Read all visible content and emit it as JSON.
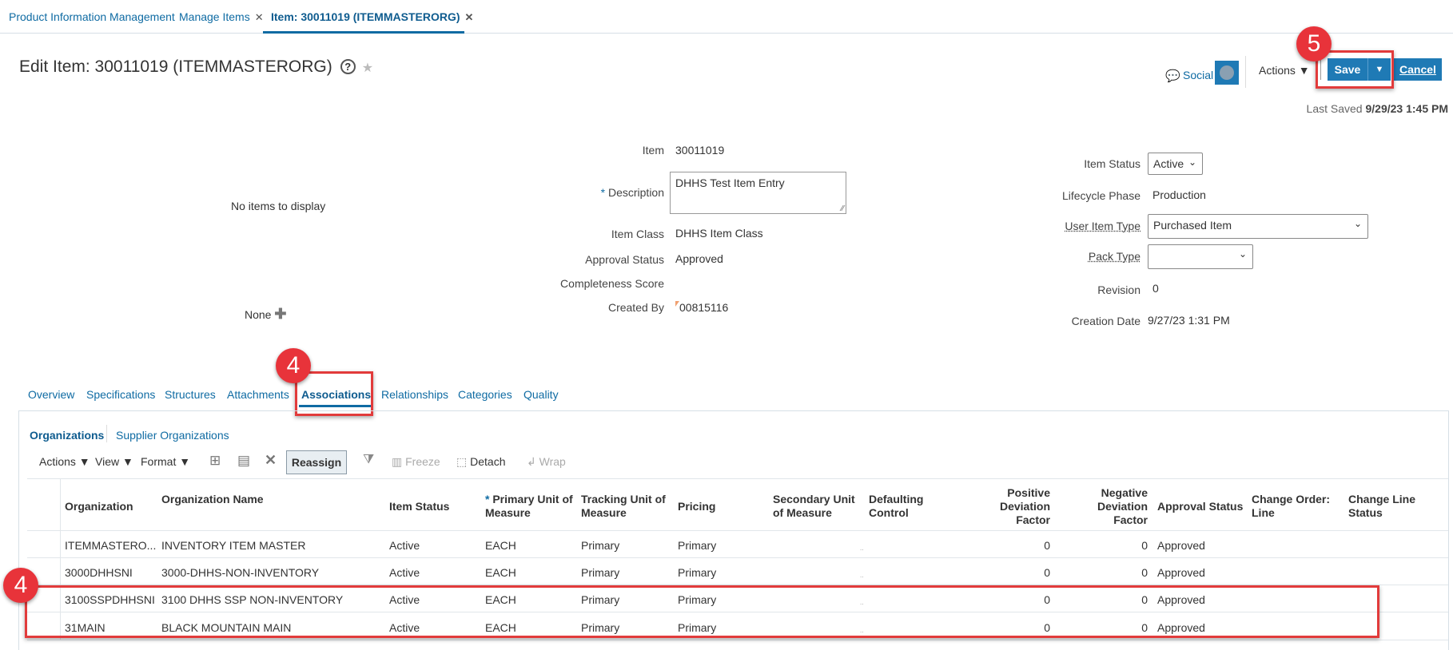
{
  "top_tabs": [
    {
      "label": "Product Information Management",
      "closable": false
    },
    {
      "label": "Manage Items",
      "closable": true
    },
    {
      "label": "Item: 30011019 (ITEMMASTERORG)",
      "closable": true,
      "active": true
    }
  ],
  "header": {
    "title": "Edit Item: 30011019 (ITEMMASTERORG)",
    "social": "Social",
    "actions": "Actions",
    "save": "Save",
    "cancel": "Cancel",
    "last_saved_label": "Last Saved",
    "last_saved_value": "9/29/23 1:45 PM"
  },
  "left": {
    "no_items": "No items to display",
    "none": "None"
  },
  "form_left": [
    {
      "label": "Item",
      "value": "30011019"
    },
    {
      "label": "Description",
      "value": "DHHS Test Item Entry",
      "required": true
    },
    {
      "label": "Item Class",
      "value": "DHHS Item Class"
    },
    {
      "label": "Approval Status",
      "value": "Approved"
    },
    {
      "label": "Completeness Score",
      "value": ""
    },
    {
      "label": "Created By",
      "value": "00815116"
    }
  ],
  "form_right": [
    {
      "label": "Item Status",
      "value": "Active"
    },
    {
      "label": "Lifecycle Phase",
      "value": "Production"
    },
    {
      "label": "User Item Type",
      "value": "Purchased Item"
    },
    {
      "label": "Pack Type",
      "value": ""
    },
    {
      "label": "Revision",
      "value": "0"
    },
    {
      "label": "Creation Date",
      "value": "9/27/23 1:31 PM"
    }
  ],
  "page_tabs": [
    "Overview",
    "Specifications",
    "Structures",
    "Attachments",
    "Associations",
    "Relationships",
    "Categories",
    "Quality"
  ],
  "active_page_tab": "Associations",
  "sub_tabs": [
    "Organizations",
    "Supplier Organizations"
  ],
  "toolbar": {
    "actions": "Actions",
    "view": "View",
    "format": "Format",
    "reassign": "Reassign",
    "freeze": "Freeze",
    "detach": "Detach",
    "wrap": "Wrap"
  },
  "annotations": {
    "save_step": "5",
    "tab_step": "4",
    "rows_step": "4",
    "highlight_color": "#e23b3b"
  },
  "table": {
    "columns": [
      "Organization",
      "Organization Name",
      "Item Status",
      "Primary Unit of Measure",
      "Tracking Unit of Measure",
      "Pricing",
      "Secondary Unit of Measure",
      "Defaulting Control",
      "Positive Deviation Factor",
      "Negative Deviation Factor",
      "Approval Status",
      "Change Order: Line",
      "Change Line Status"
    ],
    "rows": [
      [
        "ITEMMASTERO...",
        "INVENTORY ITEM MASTER",
        "Active",
        "EACH",
        "Primary",
        "Primary",
        "",
        "..",
        "0",
        "0",
        "Approved",
        "",
        ""
      ],
      [
        "3000DHHSNI",
        "3000-DHHS-NON-INVENTORY",
        "Active",
        "EACH",
        "Primary",
        "Primary",
        "",
        "..",
        "0",
        "0",
        "Approved",
        "",
        ""
      ],
      [
        "3100SSPDHHSNI",
        "3100 DHHS SSP NON-INVENTORY",
        "Active",
        "EACH",
        "Primary",
        "Primary",
        "",
        "..",
        "0",
        "0",
        "Approved",
        "",
        ""
      ],
      [
        "31MAIN",
        "BLACK MOUNTAIN MAIN",
        "Active",
        "EACH",
        "Primary",
        "Primary",
        "",
        "..",
        "0",
        "0",
        "Approved",
        "",
        ""
      ]
    ],
    "row_links": [
      false,
      true,
      true,
      true
    ]
  }
}
